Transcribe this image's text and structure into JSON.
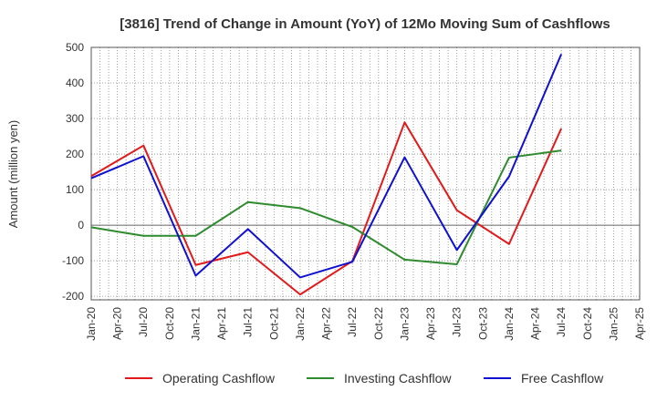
{
  "chart_data": {
    "type": "line",
    "title": "[3816]  Trend of Change in Amount (YoY) of 12Mo Moving Sum of Cashflows",
    "xlabel": "",
    "ylabel": "Amount (million yen)",
    "ylim": [
      -210,
      500
    ],
    "yticks": [
      -200,
      -100,
      0,
      100,
      200,
      300,
      400,
      500
    ],
    "grid": true,
    "legend_position": "bottom",
    "categories": [
      "Jan-20",
      "Apr-20",
      "Jul-20",
      "Oct-20",
      "Jan-21",
      "Apr-21",
      "Jul-21",
      "Oct-21",
      "Jan-22",
      "Apr-22",
      "Jul-22",
      "Oct-22",
      "Jan-23",
      "Apr-23",
      "Jul-23",
      "Oct-23",
      "Jan-24",
      "Apr-24",
      "Jul-24",
      "Oct-24",
      "Jan-25",
      "Apr-25"
    ],
    "series": [
      {
        "name": "Operating Cashflow",
        "color": "#e31a1c",
        "values": [
          138,
          null,
          224,
          null,
          -112,
          null,
          -76,
          null,
          -195,
          null,
          -101,
          null,
          289,
          null,
          42,
          null,
          -53,
          null,
          272,
          null,
          null,
          null
        ]
      },
      {
        "name": "Investing Cashflow",
        "color": "#2e8b2e",
        "values": [
          -6,
          null,
          -30,
          null,
          -30,
          null,
          65,
          null,
          48,
          null,
          -5,
          null,
          -97,
          null,
          -110,
          null,
          190,
          null,
          210,
          null,
          null,
          null
        ]
      },
      {
        "name": "Free Cashflow",
        "color": "#1010d0",
        "values": [
          132,
          null,
          194,
          null,
          -142,
          null,
          -11,
          null,
          -147,
          null,
          -103,
          null,
          191,
          null,
          -70,
          null,
          137,
          null,
          481,
          null,
          null,
          null
        ]
      }
    ]
  }
}
